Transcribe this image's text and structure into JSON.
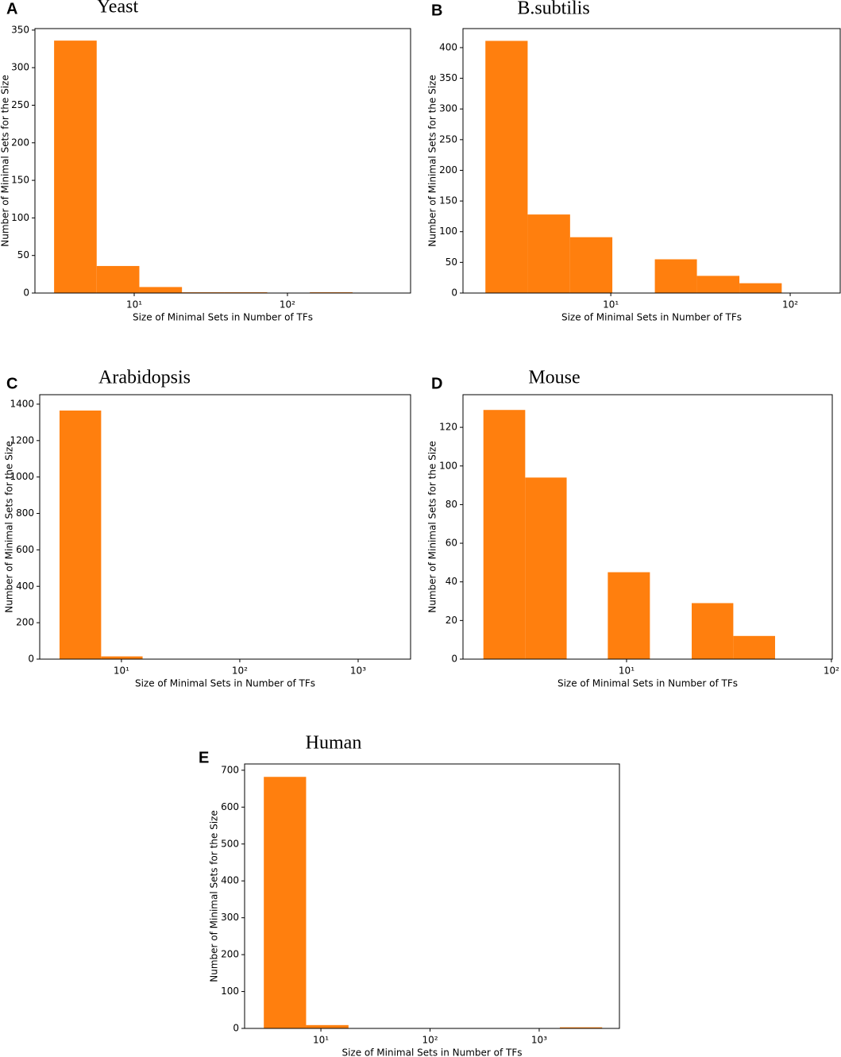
{
  "chart_data": [
    {
      "type": "histogram",
      "panel_label": "A",
      "title": "Yeast",
      "xlabel": "Size of Minimal Sets in Number of TFs",
      "ylabel": "Number of Minimal Sets for the Size",
      "xscale": "log",
      "color": "#ff7f0e",
      "bins": [
        3.0,
        5.69,
        10.8,
        20.5,
        38.9,
        73.8,
        140,
        266
      ],
      "values": [
        336,
        36,
        8,
        1,
        1,
        0,
        1
      ],
      "xlim": [
        2.25,
        636
      ],
      "ylim": [
        0,
        352
      ],
      "yticks": [
        0,
        50,
        100,
        150,
        200,
        250,
        300,
        350
      ],
      "xticks": [
        {
          "value": 10,
          "label": "10¹"
        },
        {
          "value": 100,
          "label": "10²"
        }
      ]
    },
    {
      "type": "histogram",
      "panel_label": "B",
      "title": "B.subtilis",
      "xlabel": "Size of Minimal Sets in Number of TFs",
      "ylabel": "Number of Minimal Sets for the Size",
      "xscale": "log",
      "color": "#ff7f0e",
      "bins": [
        2.0,
        3.44,
        5.93,
        10.2,
        17.6,
        30.2,
        52.1,
        89.7
      ],
      "values": [
        411,
        128,
        91,
        0,
        55,
        28,
        16
      ],
      "xlim": [
        1.5,
        190
      ],
      "ylim": [
        0,
        431
      ],
      "yticks": [
        0,
        50,
        100,
        150,
        200,
        250,
        300,
        350,
        400
      ],
      "xticks": [
        {
          "value": 10,
          "label": "10¹"
        },
        {
          "value": 100,
          "label": "10²"
        }
      ]
    },
    {
      "type": "histogram",
      "panel_label": "C",
      "title": "Arabidopsis",
      "xlabel": "Size of Minimal Sets in Number of TFs",
      "ylabel": "Number of Minimal Sets for the Size",
      "xscale": "log",
      "color": "#ff7f0e",
      "bins": [
        3.0,
        6.74,
        15.1,
        34.0,
        76.3,
        171,
        385,
        865,
        1943
      ],
      "values": [
        1365,
        15,
        0,
        0,
        0,
        0,
        0,
        1
      ],
      "xlim": [
        2.04,
        2773
      ],
      "ylim": [
        0,
        1452
      ],
      "yticks": [
        0,
        200,
        400,
        600,
        800,
        1000,
        1200,
        1400
      ],
      "xticks": [
        {
          "value": 10,
          "label": "10¹"
        },
        {
          "value": 100,
          "label": "10²"
        },
        {
          "value": 1000,
          "label": "10³"
        }
      ]
    },
    {
      "type": "histogram",
      "panel_label": "D",
      "title": "Mouse",
      "xlabel": "Size of Minimal Sets in Number of TFs",
      "ylabel": "Number of Minimal Sets for the Size",
      "xscale": "log",
      "color": "#ff7f0e",
      "bins": [
        2.0,
        3.2,
        5.1,
        8.1,
        13.0,
        20.8,
        33.2,
        53.1
      ],
      "values": [
        129,
        94,
        0,
        45,
        0,
        29,
        12
      ],
      "xlim": [
        1.59,
        101
      ],
      "ylim": [
        0,
        136.9
      ],
      "yticks": [
        0,
        20,
        40,
        60,
        80,
        100,
        120
      ],
      "xticks": [
        {
          "value": 10,
          "label": "10¹"
        },
        {
          "value": 100,
          "label": "10²"
        }
      ]
    },
    {
      "type": "histogram",
      "panel_label": "E",
      "title": "Human",
      "xlabel": "Size of Minimal Sets in Number of TFs",
      "ylabel": "Number of Minimal Sets for the Size",
      "xscale": "log",
      "color": "#ff7f0e",
      "bins": [
        3.0,
        7.32,
        17.9,
        43.6,
        106,
        260,
        634,
        1546,
        3772
      ],
      "values": [
        682,
        9,
        0,
        0,
        0,
        0,
        0,
        3
      ],
      "xlim": [
        2.0,
        5433
      ],
      "ylim": [
        0,
        717
      ],
      "yticks": [
        0,
        100,
        200,
        300,
        400,
        500,
        600,
        700
      ],
      "xticks": [
        {
          "value": 10,
          "label": "10¹"
        },
        {
          "value": 100,
          "label": "10²"
        },
        {
          "value": 1000,
          "label": "10³"
        }
      ]
    }
  ]
}
